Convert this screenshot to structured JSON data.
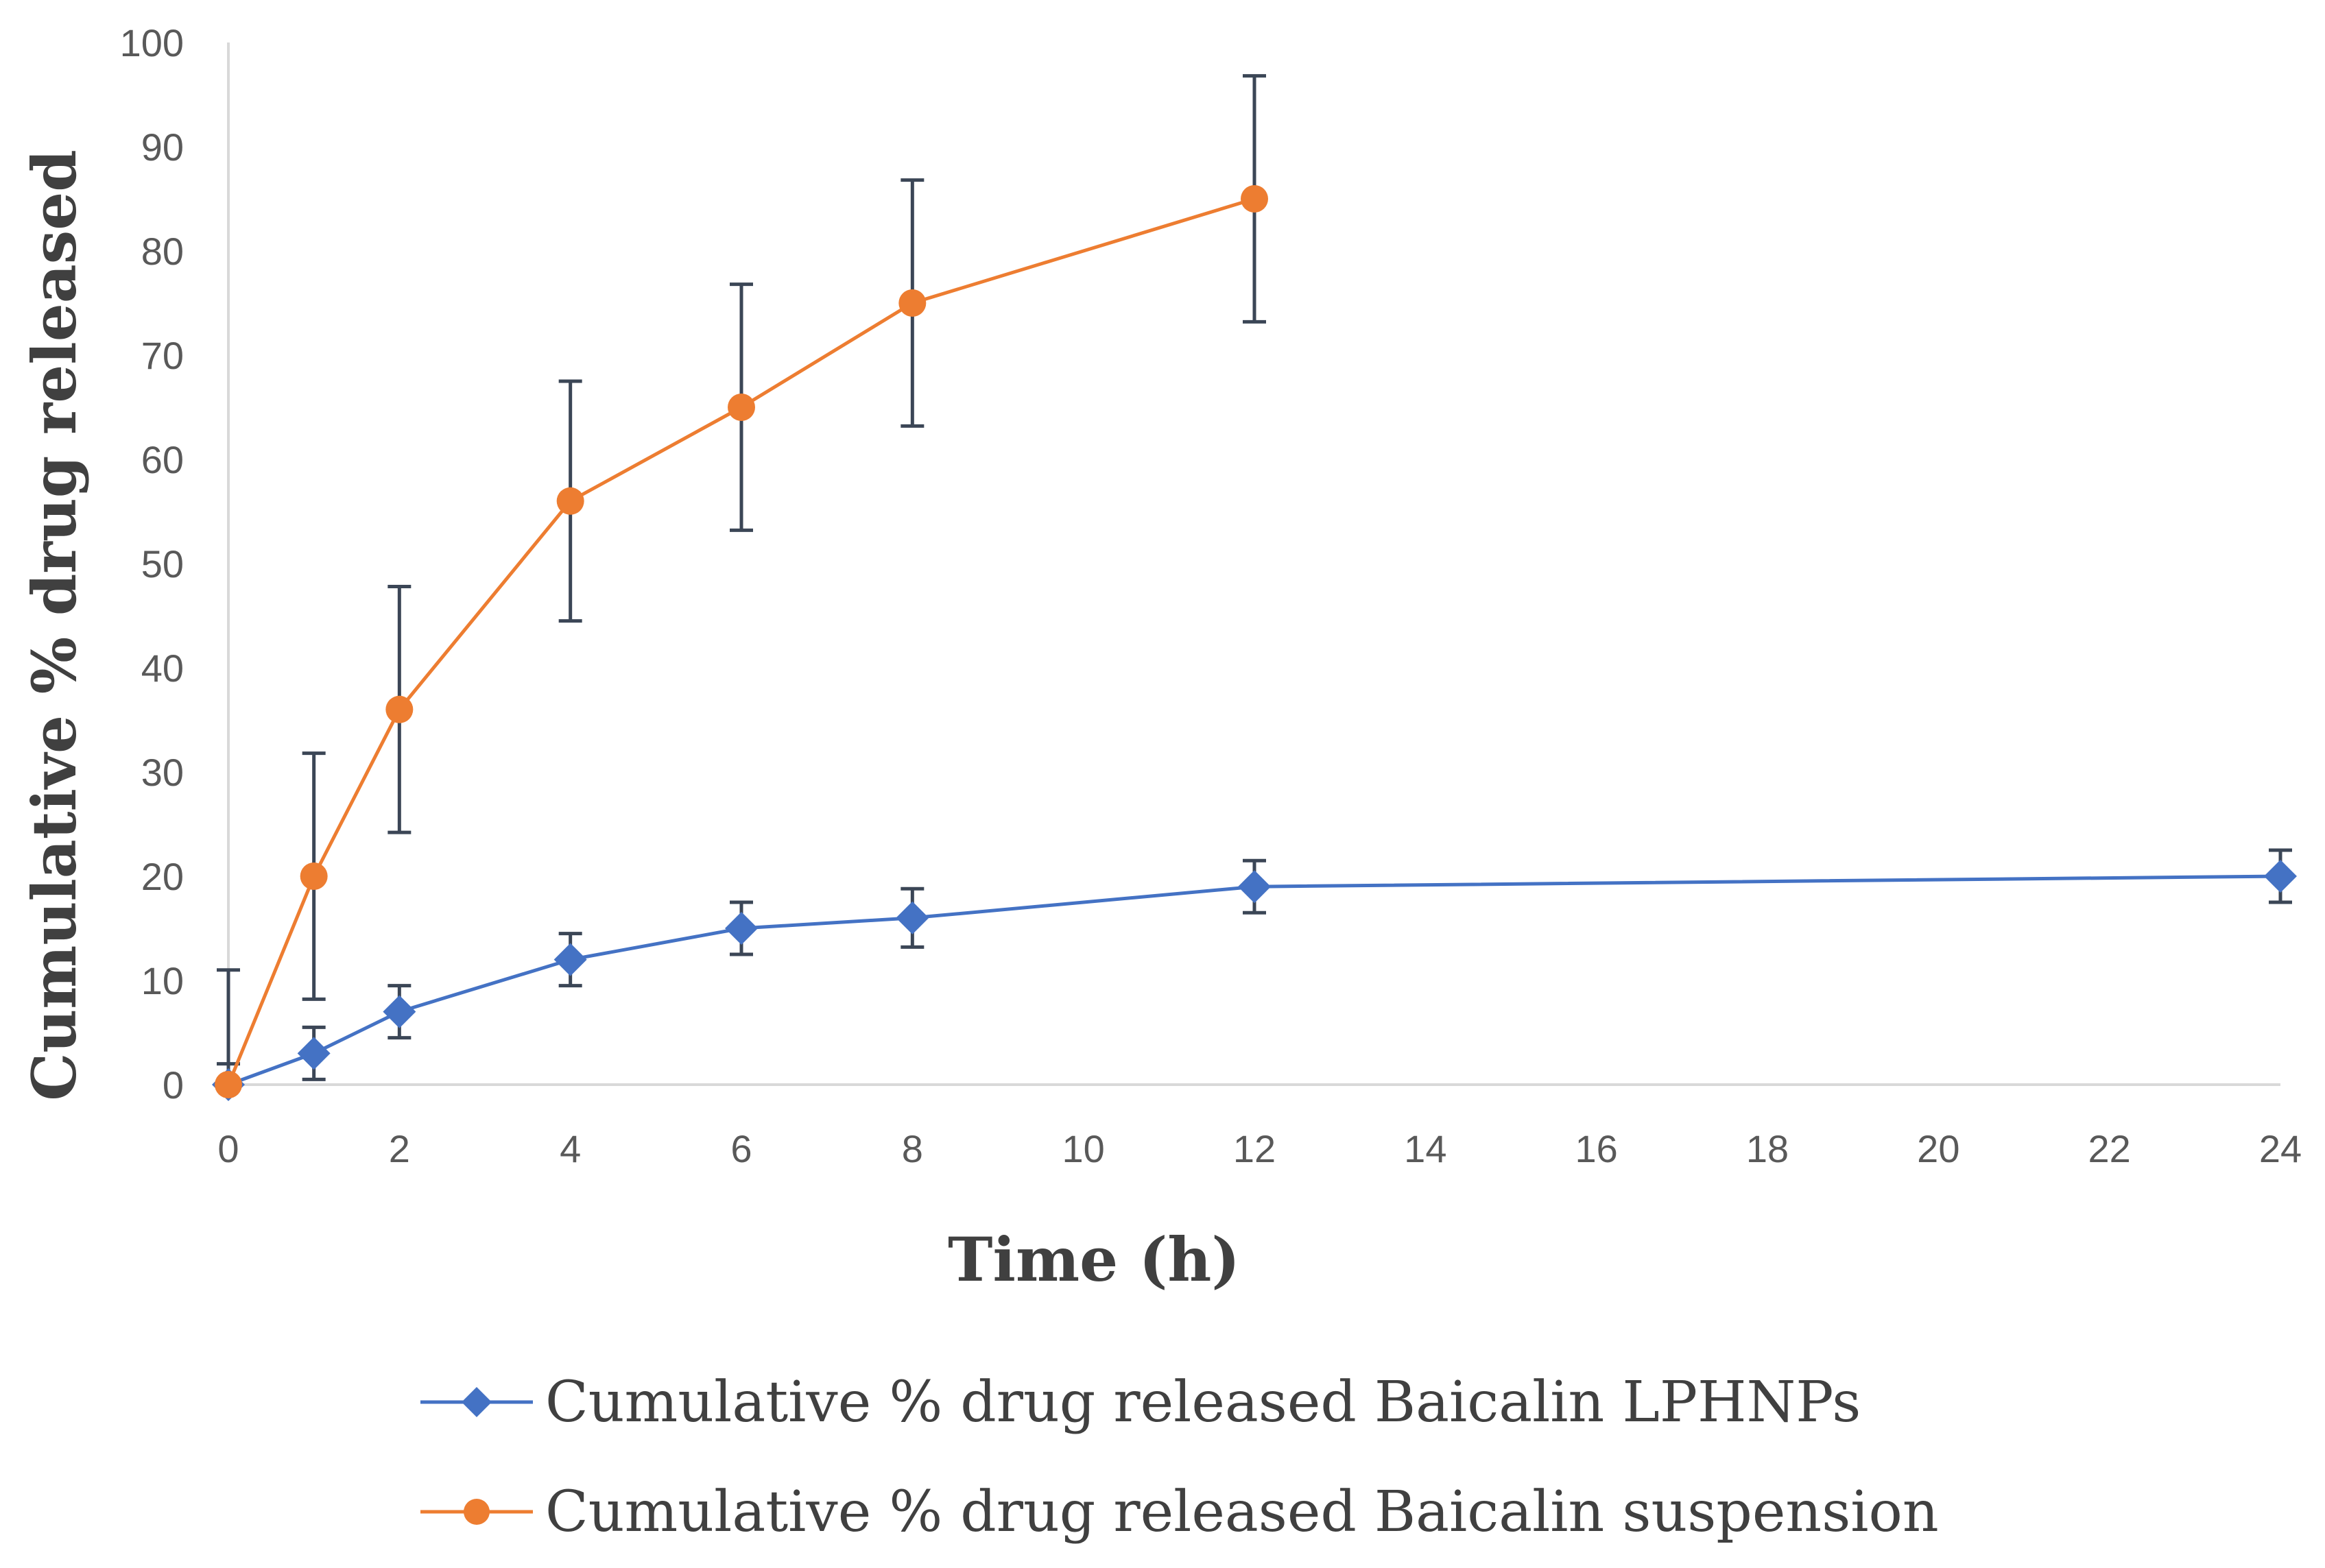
{
  "chart_data": {
    "type": "line",
    "title": "",
    "xlabel": "Time (h)",
    "ylabel": "Cumulative  % drug  released",
    "xlim": [
      0,
      24
    ],
    "ylim": [
      0,
      100
    ],
    "x_ticks": [
      "0",
      "2",
      "4",
      "6",
      "8",
      "10",
      "12",
      "14",
      "16",
      "18",
      "20",
      "22",
      "24"
    ],
    "y_ticks": [
      "0",
      "10",
      "20",
      "30",
      "40",
      "50",
      "60",
      "70",
      "80",
      "90",
      "100"
    ],
    "grid": false,
    "legend_position": "bottom",
    "series": [
      {
        "name": "Cumulative % drug released  Baicalin LPHNPs",
        "color": "#4472C4",
        "marker": "diamond",
        "x": [
          0,
          1,
          2,
          4,
          6,
          8,
          12,
          24
        ],
        "y": [
          0,
          3,
          7,
          12,
          15,
          16,
          19,
          20
        ],
        "error": [
          2,
          2.5,
          2.5,
          2.5,
          2.5,
          2.8,
          2.5,
          2.5
        ]
      },
      {
        "name": "Cumulative % drug released  Baicalin suspension",
        "color": "#ED7D31",
        "marker": "circle",
        "x": [
          0,
          1,
          2,
          4,
          6,
          8,
          12
        ],
        "y": [
          0,
          20,
          36,
          56,
          65,
          75,
          85
        ],
        "error": [
          11,
          11.8,
          11.8,
          11.5,
          11.8,
          11.8,
          11.8
        ]
      }
    ]
  }
}
